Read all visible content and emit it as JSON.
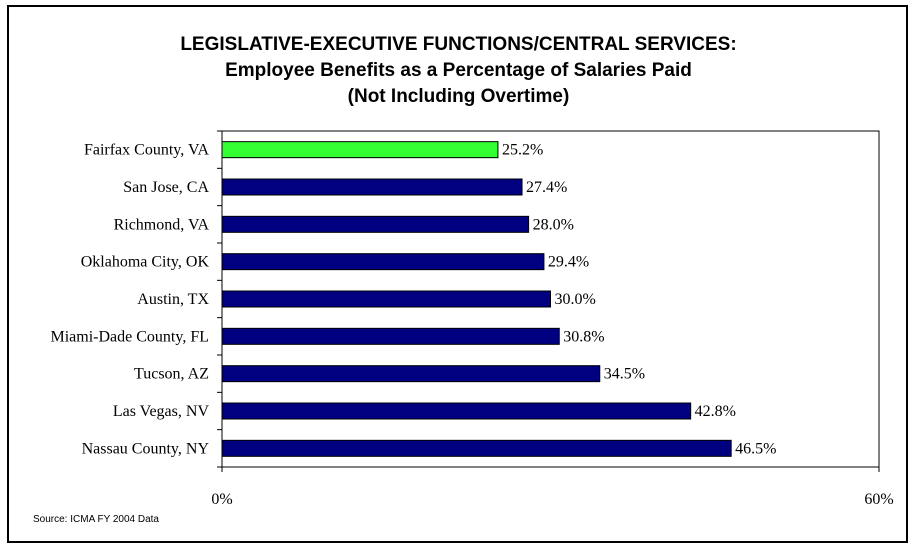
{
  "title": {
    "line1": "LEGISLATIVE-EXECUTIVE FUNCTIONS/CENTRAL SERVICES:",
    "line2": "Employee Benefits as a Percentage of Salaries Paid",
    "line3": "(Not Including Overtime)"
  },
  "source": "Source: ICMA  FY 2004 Data",
  "colors": {
    "highlight": "#33ff33",
    "bar": "#000080",
    "border": "#000000"
  },
  "chart_data": {
    "type": "bar",
    "orientation": "horizontal",
    "categories": [
      "Fairfax County, VA",
      "San Jose, CA",
      "Richmond, VA",
      "Oklahoma City, OK",
      "Austin, TX",
      "Miami-Dade County, FL",
      "Tucson, AZ",
      "Las Vegas, NV",
      "Nassau County, NY"
    ],
    "values": [
      25.2,
      27.4,
      28.0,
      29.4,
      30.0,
      30.8,
      34.5,
      42.8,
      46.5
    ],
    "value_labels": [
      "25.2%",
      "27.4%",
      "28.0%",
      "29.4%",
      "30.0%",
      "30.8%",
      "34.5%",
      "42.8%",
      "46.5%"
    ],
    "highlight_category": "Fairfax County, VA",
    "xlim": [
      0,
      60
    ],
    "x_tick_labels": [
      "0%",
      "60%"
    ],
    "xlabel": "",
    "ylabel": "",
    "grid": false,
    "legend": "none"
  }
}
